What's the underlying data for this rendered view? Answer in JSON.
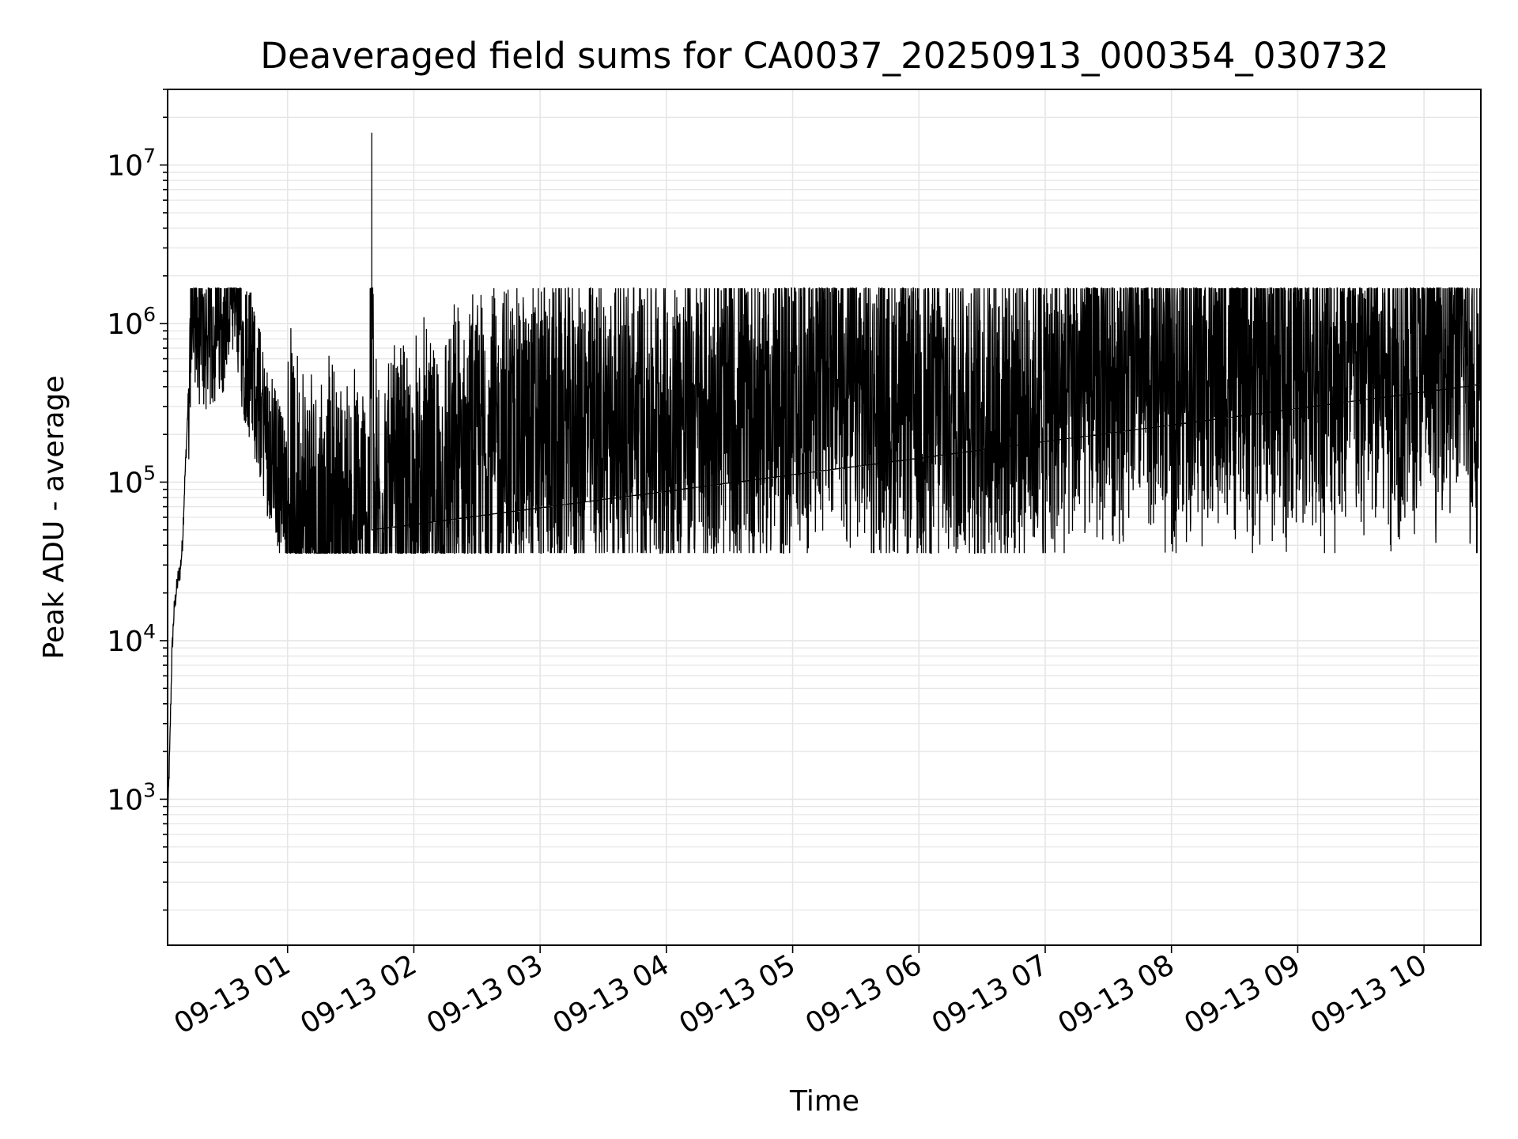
{
  "chart_data": {
    "type": "line",
    "title": "Deaveraged field sums for CA0037_20250913_000354_030732",
    "xlabel": "Time",
    "ylabel": "Peak ADU - average",
    "y_scale": "log",
    "ylim": [
      120,
      30000000
    ],
    "xlim": [
      "09-13 00:03",
      "09-13 10:27"
    ],
    "x_ticks": [
      {
        "t": "2025-09-13T01:00",
        "label": "09-13 01"
      },
      {
        "t": "2025-09-13T02:00",
        "label": "09-13 02"
      },
      {
        "t": "2025-09-13T03:00",
        "label": "09-13 03"
      },
      {
        "t": "2025-09-13T04:00",
        "label": "09-13 04"
      },
      {
        "t": "2025-09-13T05:00",
        "label": "09-13 05"
      },
      {
        "t": "2025-09-13T06:00",
        "label": "09-13 06"
      },
      {
        "t": "2025-09-13T07:00",
        "label": "09-13 07"
      },
      {
        "t": "2025-09-13T08:00",
        "label": "09-13 08"
      },
      {
        "t": "2025-09-13T09:00",
        "label": "09-13 09"
      },
      {
        "t": "2025-09-13T10:00",
        "label": "09-13 10"
      }
    ],
    "y_ticks": [
      {
        "value": 1000,
        "base": "10",
        "exp": "3"
      },
      {
        "value": 10000,
        "base": "10",
        "exp": "4"
      },
      {
        "value": 100000,
        "base": "10",
        "exp": "5"
      },
      {
        "value": 1000000,
        "base": "10",
        "exp": "6"
      },
      {
        "value": 10000000,
        "base": "10",
        "exp": "7"
      }
    ],
    "grid": true,
    "line_color": "#000000",
    "grid_color": "#e6e6e6",
    "series": [
      {
        "points": [
          [
            "00:03",
            700
          ],
          [
            "00:04",
            2000
          ],
          [
            "00:05",
            8000
          ],
          [
            "00:06",
            15000
          ],
          [
            "00:07",
            20000
          ],
          [
            "00:08",
            25000
          ],
          [
            "00:09",
            28000
          ],
          [
            "00:10",
            40000
          ],
          [
            "00:11",
            90000
          ],
          [
            "00:12",
            180000
          ],
          [
            "00:13",
            400000
          ],
          [
            "00:14",
            900000
          ],
          [
            "00:16",
            1000000
          ],
          [
            "00:20",
            800000
          ],
          [
            "00:25",
            900000
          ],
          [
            "00:30",
            1200000
          ],
          [
            "00:35",
            1400000
          ],
          [
            "00:40",
            700000
          ],
          [
            "00:45",
            400000
          ],
          [
            "00:50",
            200000
          ],
          [
            "00:55",
            120000
          ],
          [
            "01:00",
            80000
          ],
          [
            "01:10",
            60000
          ],
          [
            "01:20",
            50000
          ],
          [
            "01:30",
            45000
          ],
          [
            "01:35",
            50000
          ],
          [
            "01:39",
            60000
          ],
          [
            "01:40",
            16000000
          ],
          [
            "01:41",
            55000
          ],
          [
            "01:50",
            60000
          ],
          [
            "02:00",
            70000
          ],
          [
            "02:15",
            90000
          ],
          [
            "02:30",
            150000
          ],
          [
            "02:45",
            180000
          ],
          [
            "03:00",
            200000
          ],
          [
            "03:30",
            230000
          ],
          [
            "04:00",
            240000
          ],
          [
            "04:30",
            260000
          ],
          [
            "05:00",
            300000
          ],
          [
            "05:15",
            600000
          ],
          [
            "05:30",
            350000
          ],
          [
            "06:00",
            280000
          ],
          [
            "06:30",
            300000
          ],
          [
            "07:00",
            320000
          ],
          [
            "07:15",
            350000
          ],
          [
            "07:30",
            500000
          ],
          [
            "08:00",
            450000
          ],
          [
            "08:30",
            500000
          ],
          [
            "09:00",
            480000
          ],
          [
            "09:30",
            450000
          ],
          [
            "10:00",
            550000
          ],
          [
            "10:15",
            800000
          ],
          [
            "10:27",
            300000
          ]
        ],
        "noise": {
          "min": 40000,
          "max": 1600000
        }
      }
    ]
  }
}
